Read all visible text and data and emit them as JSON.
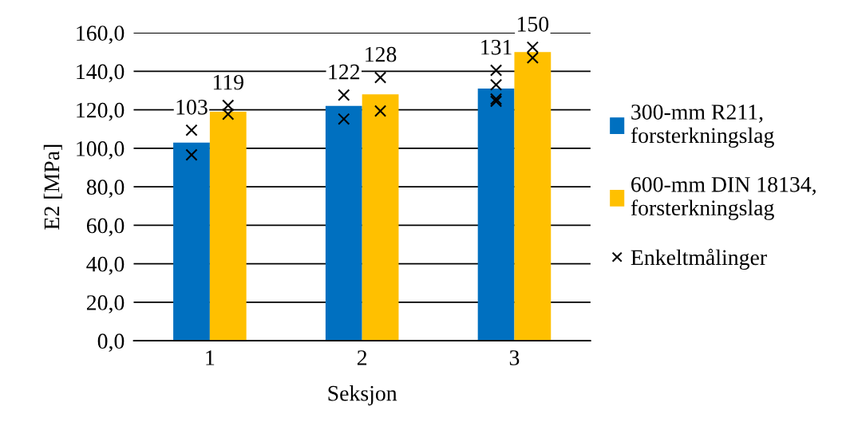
{
  "chart_data": {
    "type": "bar",
    "xlabel": "Seksjon",
    "ylabel": "E2 [MPa]",
    "categories": [
      "1",
      "2",
      "3"
    ],
    "series": [
      {
        "name": "300-mm R211,\nforsterkningslag",
        "color": "#0070c0",
        "values": [
          103,
          122,
          131
        ],
        "value_labels": [
          "103",
          "122",
          "131"
        ]
      },
      {
        "name": "600-mm DIN 18134,\nforsterkningslag",
        "color": "#ffc000",
        "values": [
          119,
          128,
          150
        ],
        "value_labels": [
          "119",
          "128",
          "150"
        ]
      },
      {
        "name": "Enkeltmålinger",
        "type": "scatter",
        "color": "#000000",
        "marker": "cross",
        "x": [
          "1",
          "1",
          "2",
          "2",
          "3",
          "3",
          "3",
          "3"
        ],
        "values": [
          109.4,
          96.6,
          127.7,
          115.2,
          140.5,
          133,
          125.6,
          124.4
        ]
      },
      {
        "type": "scatter",
        "color": "#000000",
        "marker": "cross",
        "x": [
          "1",
          "1",
          "2",
          "2",
          "3",
          "3"
        ],
        "values": [
          122.3,
          117.7,
          136.8,
          119.4,
          152.5,
          147
        ]
      }
    ],
    "ylim": [
      0,
      160
    ],
    "yticks": [
      {
        "value": 0,
        "label": "0,0"
      },
      {
        "value": 20,
        "label": "20,0"
      },
      {
        "value": 40,
        "label": "40,0"
      },
      {
        "value": 60,
        "label": "60,0"
      },
      {
        "value": 80,
        "label": "80,0"
      },
      {
        "value": 100,
        "label": "100,0"
      },
      {
        "value": 120,
        "label": "120,0"
      },
      {
        "value": 140,
        "label": "140,0"
      },
      {
        "value": 160,
        "label": "160,0"
      }
    ],
    "grid": "y",
    "legend": "right"
  }
}
